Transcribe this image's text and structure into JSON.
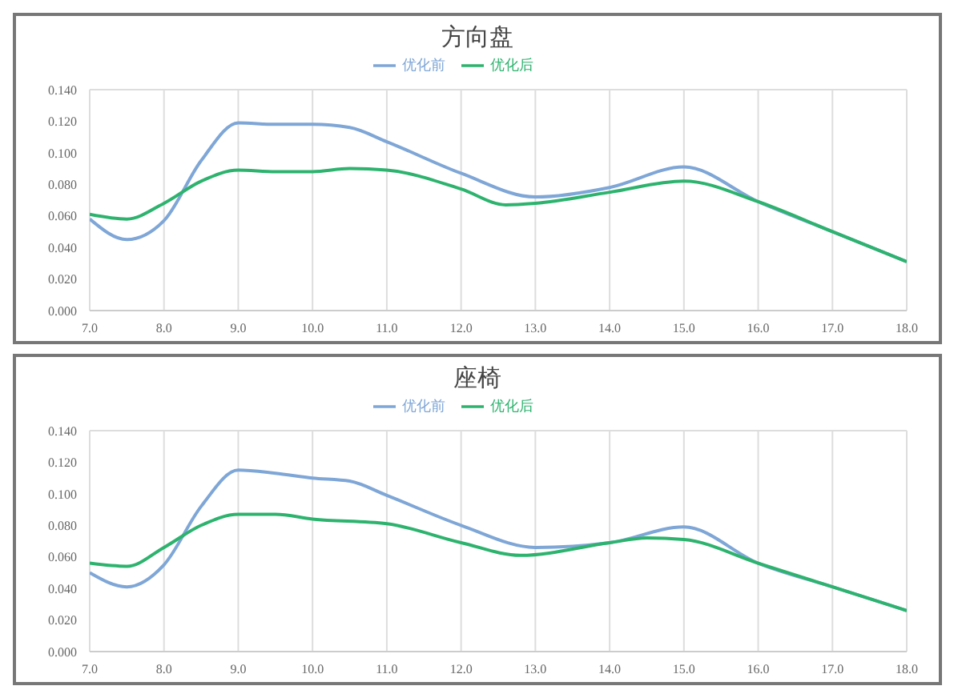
{
  "chart_data": [
    {
      "type": "line",
      "title": "方向盘",
      "legend": "top",
      "grid": true,
      "marker": "none",
      "line_style": "solid",
      "xlim": [
        7,
        18
      ],
      "xticks": [
        {
          "value": 7,
          "label": "7.0"
        },
        {
          "value": 8,
          "label": "8.0"
        },
        {
          "value": 9,
          "label": "9.0"
        },
        {
          "value": 10,
          "label": "10.0"
        },
        {
          "value": 11,
          "label": "11.0"
        },
        {
          "value": 12,
          "label": "12.0"
        },
        {
          "value": 13,
          "label": "13.0"
        },
        {
          "value": 14,
          "label": "14.0"
        },
        {
          "value": 15,
          "label": "15.0"
        },
        {
          "value": 16,
          "label": "16.0"
        },
        {
          "value": 17,
          "label": "17.0"
        },
        {
          "value": 18,
          "label": "18.0"
        }
      ],
      "ylim": [
        0,
        0.14
      ],
      "yticks": [
        {
          "value": 0,
          "label": "0.000"
        },
        {
          "value": 0.02,
          "label": "0.020"
        },
        {
          "value": 0.04,
          "label": "0.040"
        },
        {
          "value": 0.06,
          "label": "0.060"
        },
        {
          "value": 0.08,
          "label": "0.080"
        },
        {
          "value": 0.1,
          "label": "0.100"
        },
        {
          "value": 0.12,
          "label": "0.120"
        },
        {
          "value": 0.14,
          "label": "0.140"
        }
      ],
      "series": [
        {
          "name": "优化前",
          "color": "#7ea6d6",
          "x": [
            7,
            7.5,
            8,
            8.5,
            9,
            9.5,
            10,
            10.5,
            11,
            12,
            13,
            14,
            15,
            16,
            17,
            18
          ],
          "values": [
            0.058,
            0.045,
            0.057,
            0.095,
            0.119,
            0.118,
            0.118,
            0.116,
            0.107,
            0.087,
            0.072,
            0.078,
            0.091,
            0.069,
            0.05,
            0.031
          ]
        },
        {
          "name": "优化后",
          "color": "#2db36e",
          "x": [
            7,
            7.5,
            8,
            8.5,
            9,
            9.5,
            10,
            10.5,
            11,
            12,
            12.6,
            13,
            14,
            15,
            16,
            17,
            18
          ],
          "values": [
            0.061,
            0.058,
            0.068,
            0.082,
            0.089,
            0.088,
            0.088,
            0.09,
            0.089,
            0.077,
            0.067,
            0.068,
            0.075,
            0.082,
            0.069,
            0.05,
            0.031
          ]
        }
      ]
    },
    {
      "type": "line",
      "title": "座椅",
      "legend": "top",
      "grid": true,
      "marker": "none",
      "line_style": "solid",
      "xlim": [
        7,
        18
      ],
      "xticks": [
        {
          "value": 7,
          "label": "7.0"
        },
        {
          "value": 8,
          "label": "8.0"
        },
        {
          "value": 9,
          "label": "9.0"
        },
        {
          "value": 10,
          "label": "10.0"
        },
        {
          "value": 11,
          "label": "11.0"
        },
        {
          "value": 12,
          "label": "12.0"
        },
        {
          "value": 13,
          "label": "13.0"
        },
        {
          "value": 14,
          "label": "14.0"
        },
        {
          "value": 15,
          "label": "15.0"
        },
        {
          "value": 16,
          "label": "16.0"
        },
        {
          "value": 17,
          "label": "17.0"
        },
        {
          "value": 18,
          "label": "18.0"
        }
      ],
      "ylim": [
        0,
        0.14
      ],
      "yticks": [
        {
          "value": 0,
          "label": "0.000"
        },
        {
          "value": 0.02,
          "label": "0.020"
        },
        {
          "value": 0.04,
          "label": "0.040"
        },
        {
          "value": 0.06,
          "label": "0.060"
        },
        {
          "value": 0.08,
          "label": "0.080"
        },
        {
          "value": 0.1,
          "label": "0.100"
        },
        {
          "value": 0.12,
          "label": "0.120"
        },
        {
          "value": 0.14,
          "label": "0.140"
        }
      ],
      "series": [
        {
          "name": "优化前",
          "color": "#7ea6d6",
          "x": [
            7,
            7.5,
            8,
            8.5,
            9,
            9.5,
            10,
            10.5,
            11,
            12,
            13,
            14,
            15,
            16,
            17,
            18
          ],
          "values": [
            0.05,
            0.041,
            0.055,
            0.092,
            0.115,
            0.113,
            0.11,
            0.108,
            0.099,
            0.08,
            0.066,
            0.069,
            0.079,
            0.056,
            0.041,
            0.026
          ]
        },
        {
          "name": "优化后",
          "color": "#2db36e",
          "x": [
            7,
            7.5,
            8,
            8.5,
            9,
            9.5,
            10,
            11,
            12,
            12.8,
            14,
            14.5,
            15,
            16,
            17,
            18
          ],
          "values": [
            0.056,
            0.054,
            0.066,
            0.08,
            0.087,
            0.087,
            0.084,
            0.081,
            0.069,
            0.061,
            0.069,
            0.072,
            0.071,
            0.056,
            0.041,
            0.026
          ]
        }
      ]
    }
  ]
}
